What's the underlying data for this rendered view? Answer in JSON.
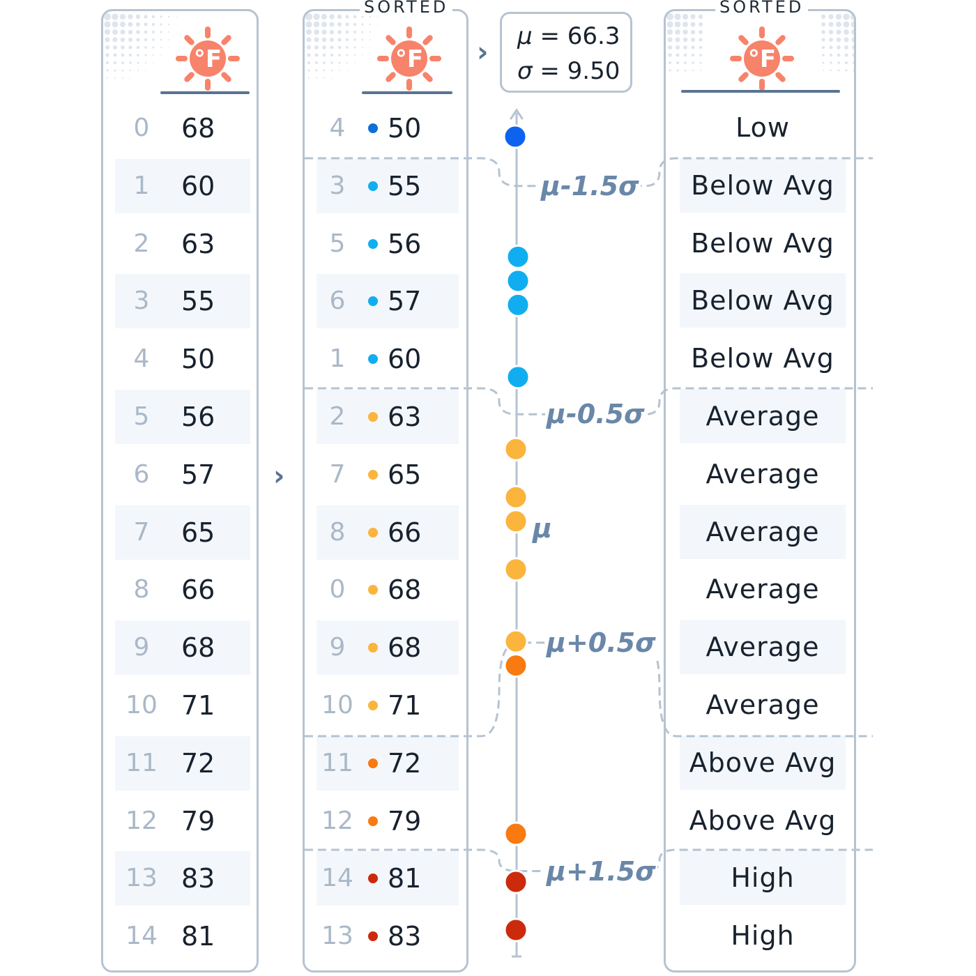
{
  "icon": "thermometer-sun-fahrenheit-icon",
  "icon_text": "°F",
  "sorted_label": "SORTED",
  "raw_rows": [
    {
      "idx": "0",
      "val": "68"
    },
    {
      "idx": "1",
      "val": "60"
    },
    {
      "idx": "2",
      "val": "63"
    },
    {
      "idx": "3",
      "val": "55"
    },
    {
      "idx": "4",
      "val": "50"
    },
    {
      "idx": "5",
      "val": "56"
    },
    {
      "idx": "6",
      "val": "57"
    },
    {
      "idx": "7",
      "val": "65"
    },
    {
      "idx": "8",
      "val": "66"
    },
    {
      "idx": "9",
      "val": "68"
    },
    {
      "idx": "10",
      "val": "71"
    },
    {
      "idx": "11",
      "val": "72"
    },
    {
      "idx": "12",
      "val": "79"
    },
    {
      "idx": "13",
      "val": "83"
    },
    {
      "idx": "14",
      "val": "81"
    }
  ],
  "sorted_rows": [
    {
      "idx": "4",
      "val": "50",
      "color": "#0e6fd6"
    },
    {
      "idx": "3",
      "val": "55",
      "color": "#10aef0"
    },
    {
      "idx": "5",
      "val": "56",
      "color": "#10aef0"
    },
    {
      "idx": "6",
      "val": "57",
      "color": "#10aef0"
    },
    {
      "idx": "1",
      "val": "60",
      "color": "#10aef0"
    },
    {
      "idx": "2",
      "val": "63",
      "color": "#fbb43c"
    },
    {
      "idx": "7",
      "val": "65",
      "color": "#fbb43c"
    },
    {
      "idx": "8",
      "val": "66",
      "color": "#fbb43c"
    },
    {
      "idx": "0",
      "val": "68",
      "color": "#fbb43c"
    },
    {
      "idx": "9",
      "val": "68",
      "color": "#fbb43c"
    },
    {
      "idx": "10",
      "val": "71",
      "color": "#fbb43c"
    },
    {
      "idx": "11",
      "val": "72",
      "color": "#f97a10"
    },
    {
      "idx": "12",
      "val": "79",
      "color": "#f97a10"
    },
    {
      "idx": "14",
      "val": "81",
      "color": "#cc2a0c"
    },
    {
      "idx": "13",
      "val": "83",
      "color": "#cc2a0c"
    }
  ],
  "categories": [
    "Low",
    "Below Avg",
    "Below Avg",
    "Below Avg",
    "Below Avg",
    "Average",
    "Average",
    "Average",
    "Average",
    "Average",
    "Average",
    "Above Avg",
    "Above Avg",
    "High",
    "High"
  ],
  "stats": {
    "mu_symbol": "μ",
    "mu_value": "= 66.3",
    "sigma_symbol": "σ",
    "sigma_value": "= 9.50"
  },
  "thresholds": [
    {
      "label": "μ-1.5σ"
    },
    {
      "label": "μ-0.5σ"
    },
    {
      "label": "μ"
    },
    {
      "label": "μ+0.5σ"
    },
    {
      "label": "μ+1.5σ"
    }
  ],
  "axis_points": [
    {
      "value": 50,
      "color": "#0e62f0"
    },
    {
      "value": 55,
      "color": "#10aef0"
    },
    {
      "value": 56,
      "color": "#10aef0"
    },
    {
      "value": 57,
      "color": "#10aef0"
    },
    {
      "value": 60,
      "color": "#10aef0"
    },
    {
      "value": 63,
      "color": "#fbb43c"
    },
    {
      "value": 65,
      "color": "#fbb43c"
    },
    {
      "value": 66,
      "color": "#fbb43c"
    },
    {
      "value": 68,
      "color": "#fbb43c"
    },
    {
      "value": 68,
      "color": "#fbb43c"
    },
    {
      "value": 71,
      "color": "#fbb43c"
    },
    {
      "value": 72,
      "color": "#f97a10"
    },
    {
      "value": 79,
      "color": "#f97a10"
    },
    {
      "value": 81,
      "color": "#cc2a0c"
    },
    {
      "value": 83,
      "color": "#cc2a0c"
    }
  ],
  "colors": {
    "border": "#b6c3d1",
    "accent": "#5a7391",
    "threshold": "#6a87a8",
    "sun": "#f7836a"
  }
}
